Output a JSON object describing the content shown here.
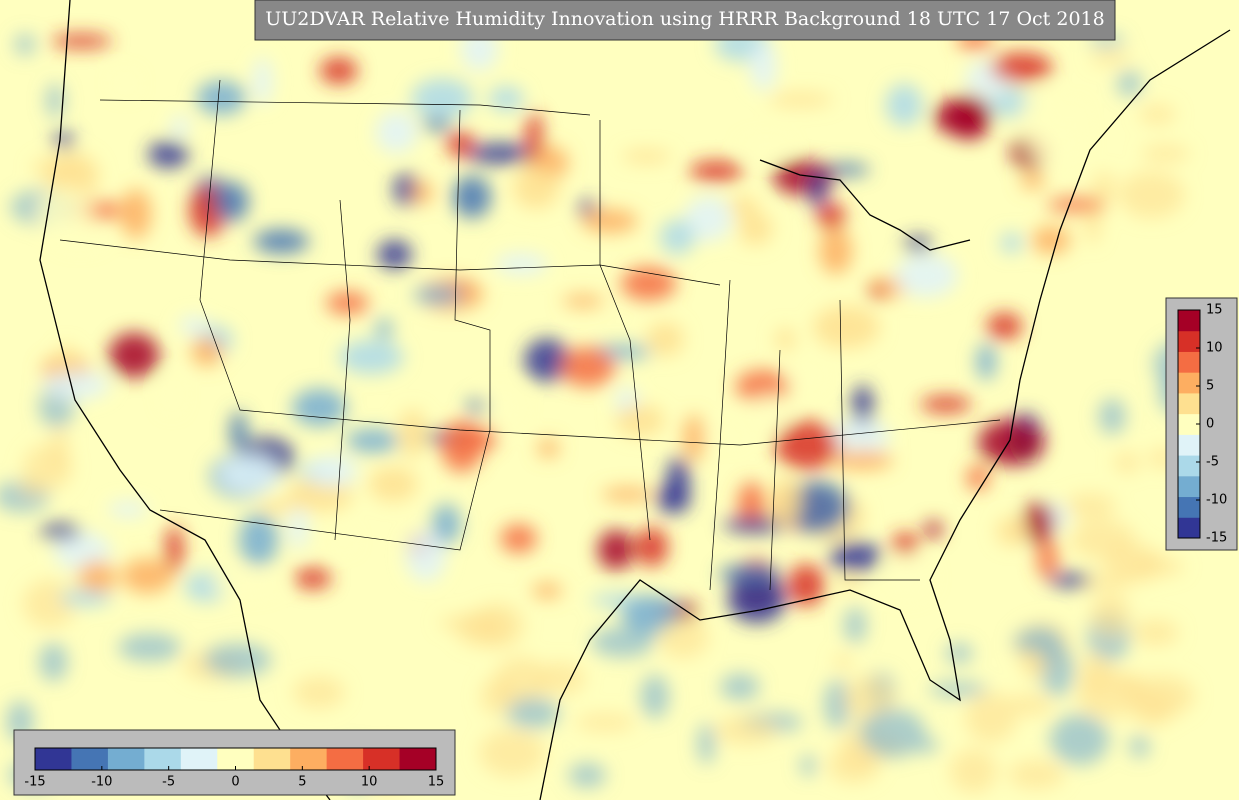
{
  "title": "UU2DVAR Relative Humidity Innovation using HRRR Background 18 UTC 17 Oct 2018",
  "colorbar": {
    "range": [
      -15,
      15
    ],
    "ticks": [
      -15,
      -10,
      -5,
      0,
      5,
      10,
      15
    ],
    "colors": [
      "#313695",
      "#4575b4",
      "#74add1",
      "#abd9e9",
      "#e0f3f8",
      "#ffffbf",
      "#fee090",
      "#fdae61",
      "#f46d43",
      "#d73027",
      "#a50026"
    ]
  }
}
